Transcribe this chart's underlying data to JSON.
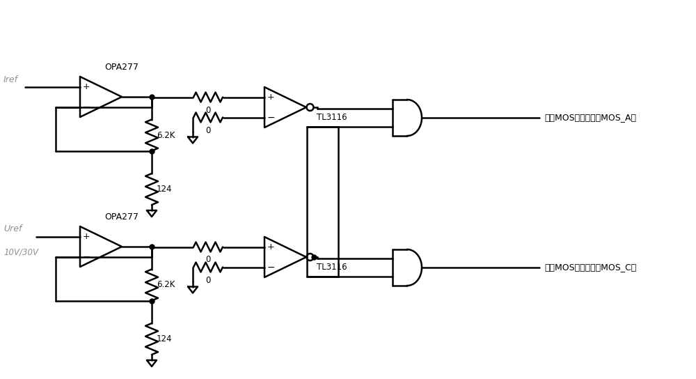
{
  "bg_color": "#ffffff",
  "line_color": "#000000",
  "label_color_gray": "#808080",
  "figsize": [
    10.0,
    5.44
  ],
  "dpi": 100,
  "top_circuit": {
    "iref_label": "Iref",
    "opa_label": "OPA277",
    "r1_label": "6.2K",
    "r2_label": "124",
    "r3_label": "0",
    "r4_label": "0",
    "tl_label": "TL3116",
    "out_label": "后接MOS驱动器驱动MOS_A管"
  },
  "bottom_circuit": {
    "uref_label": "Uref",
    "uref_label2": "10V/30V",
    "opa_label": "OPA277",
    "r1_label": "6.2K",
    "r2_label": "124",
    "r3_label": "0",
    "r4_label": "0",
    "tl_label": "TL3116",
    "out_label": "后接MOS驱动器驱动MOS_C管"
  }
}
